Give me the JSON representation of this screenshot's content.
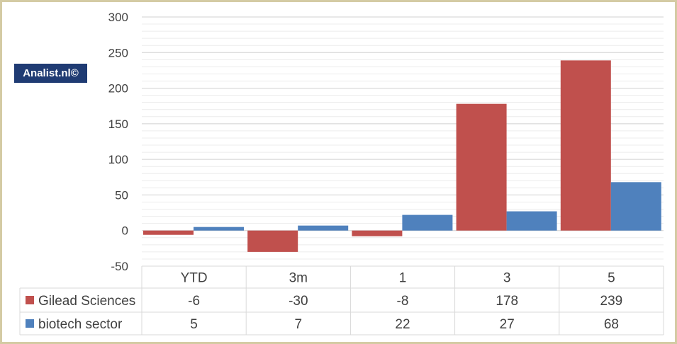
{
  "watermark": "Analist.nl©",
  "colors": {
    "gilead": "#c0504d",
    "biotech": "#4f81bd",
    "frame": "#d4cba4",
    "logo_bg": "#1f3b73"
  },
  "chart_data": {
    "type": "bar",
    "categories": [
      "YTD",
      "3m",
      "1",
      "3",
      "5"
    ],
    "series": [
      {
        "name": "Gilead Sciences",
        "values": [
          -6,
          -30,
          -8,
          178,
          239
        ],
        "color": "#c0504d"
      },
      {
        "name": "biotech sector",
        "values": [
          5,
          7,
          22,
          27,
          68
        ],
        "color": "#4f81bd"
      }
    ],
    "ylim": [
      -50,
      300
    ],
    "yticks": [
      -50,
      0,
      50,
      100,
      150,
      200,
      250,
      300
    ],
    "grid": true,
    "legend": "data-table",
    "title": "",
    "xlabel": "",
    "ylabel": ""
  }
}
